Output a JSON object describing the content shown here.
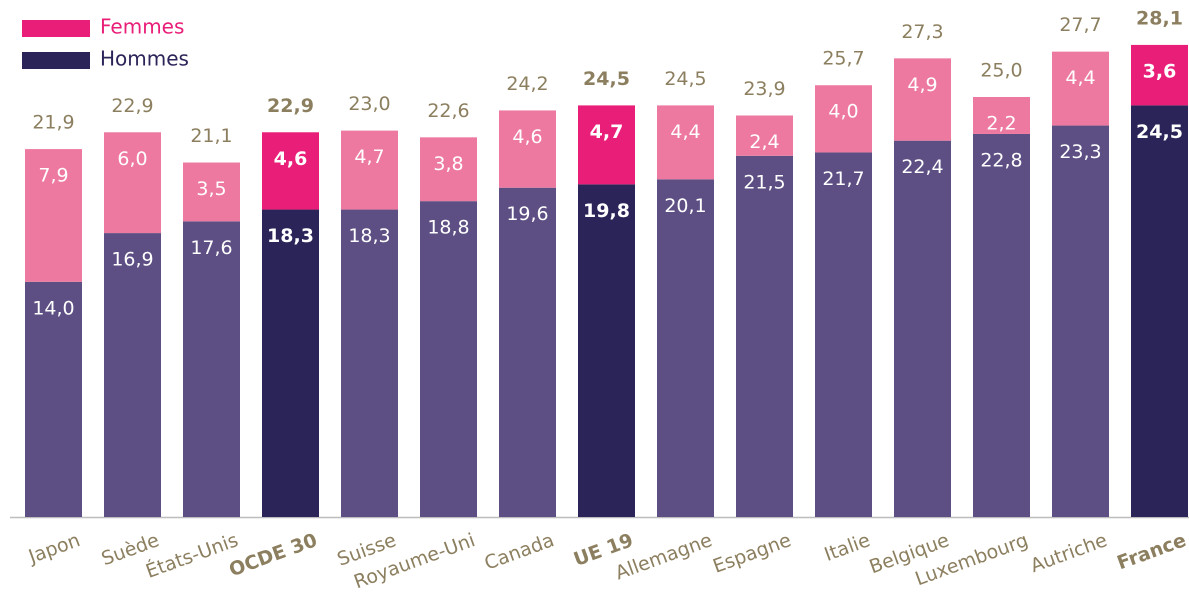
{
  "chart_data": {
    "type": "stacked_bar",
    "categories": [
      "Japon",
      "Suède",
      "États-Unis",
      "OCDE 30",
      "Suisse",
      "Royaume-Uni",
      "Canada",
      "UE 19",
      "Allemagne",
      "Espagne",
      "Italie",
      "Belgique",
      "Luxembourg",
      "Autriche",
      "France"
    ],
    "highlighted": [
      false,
      false,
      false,
      true,
      false,
      false,
      false,
      true,
      false,
      false,
      false,
      false,
      false,
      false,
      true
    ],
    "series": [
      {
        "name": "Femmes",
        "color": "#ee79a0",
        "highlight_color": "#e91e78",
        "values": [
          7.9,
          6.0,
          3.5,
          4.6,
          4.7,
          3.8,
          4.6,
          4.7,
          4.4,
          2.4,
          4.0,
          4.9,
          2.2,
          4.4,
          3.6
        ],
        "value_labels": [
          "7,9",
          "6,0",
          "3,5",
          "4,6",
          "4,7",
          "3,8",
          "4,6",
          "4,7",
          "4,4",
          "2,4",
          "4,0",
          "4,9",
          "2,2",
          "4,4",
          "3,6"
        ]
      },
      {
        "name": "Hommes",
        "color": "#5d4f83",
        "highlight_color": "#2b2459",
        "values": [
          14.0,
          16.9,
          17.6,
          18.3,
          18.3,
          18.8,
          19.6,
          19.8,
          20.1,
          21.5,
          21.7,
          22.4,
          22.8,
          23.3,
          24.5
        ],
        "value_labels": [
          "14,0",
          "16,9",
          "17,6",
          "18,3",
          "18,3",
          "18,8",
          "19,6",
          "19,8",
          "20,1",
          "21,5",
          "21,7",
          "22,4",
          "22,8",
          "23,3",
          "24,5"
        ]
      }
    ],
    "totals": [
      21.9,
      22.9,
      21.1,
      22.9,
      23.0,
      22.6,
      24.2,
      24.5,
      24.5,
      23.9,
      25.7,
      27.3,
      25.0,
      27.7,
      28.1
    ],
    "total_labels": [
      "21,9",
      "22,9",
      "21,1",
      "22,9",
      "23,0",
      "22,6",
      "24,2",
      "24,5",
      "24,5",
      "23,9",
      "25,7",
      "27,3",
      "25,0",
      "27,7",
      "28,1"
    ],
    "ylim": [
      0,
      30
    ],
    "legend": "top-left"
  }
}
